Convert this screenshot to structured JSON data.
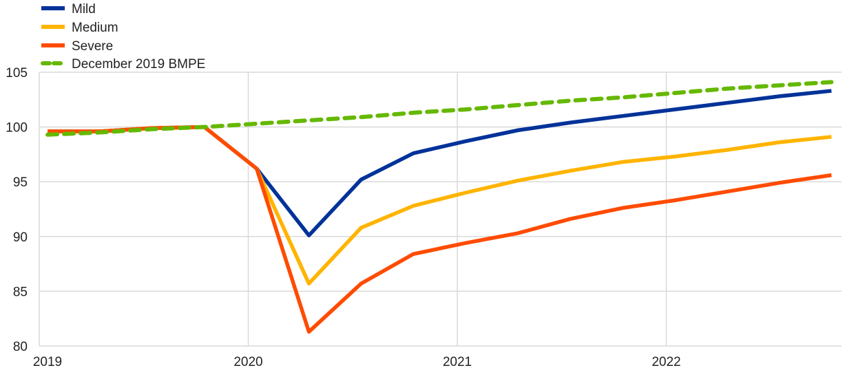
{
  "chart_data": {
    "type": "line",
    "title": "",
    "xlabel": "",
    "ylabel": "",
    "ylim": [
      80,
      105
    ],
    "yticks": [
      80,
      85,
      90,
      95,
      100,
      105
    ],
    "xticks": [
      "2019",
      "2020",
      "2021",
      "2022"
    ],
    "xlim": [
      2019,
      2022.85
    ],
    "grid": true,
    "legend_position": "top-left",
    "x": [
      "2019 Q1",
      "2019 Q2",
      "2019 Q3",
      "2019 Q4",
      "2020 Q1",
      "2020 Q2",
      "2020 Q3",
      "2020 Q4",
      "2021 Q1",
      "2021 Q2",
      "2021 Q3",
      "2021 Q4",
      "2022 Q1",
      "2022 Q2",
      "2022 Q3",
      "2022 Q4"
    ],
    "series": [
      {
        "name": "Mild",
        "color": "#003299",
        "dashed": false,
        "values": [
          99.6,
          99.6,
          99.9,
          100.0,
          96.2,
          90.1,
          95.2,
          97.6,
          98.7,
          99.7,
          100.4,
          101.0,
          101.6,
          102.2,
          102.8,
          103.3
        ]
      },
      {
        "name": "Medium",
        "color": "#FFB400",
        "dashed": false,
        "values": [
          99.6,
          99.6,
          99.9,
          100.0,
          96.2,
          85.7,
          90.8,
          92.8,
          94.0,
          95.1,
          96.0,
          96.8,
          97.3,
          97.9,
          98.6,
          99.1
        ]
      },
      {
        "name": "Severe",
        "color": "#FF4B00",
        "dashed": false,
        "values": [
          99.6,
          99.6,
          99.9,
          100.0,
          96.2,
          81.3,
          85.7,
          88.4,
          89.4,
          90.3,
          91.6,
          92.6,
          93.3,
          94.1,
          94.9,
          95.6
        ]
      },
      {
        "name": "December 2019 BMPE",
        "color": "#65B800",
        "dashed": true,
        "values": [
          99.3,
          99.5,
          99.8,
          100.0,
          100.3,
          100.6,
          100.9,
          101.3,
          101.6,
          102.0,
          102.4,
          102.7,
          103.1,
          103.5,
          103.8,
          104.1
        ]
      }
    ]
  }
}
